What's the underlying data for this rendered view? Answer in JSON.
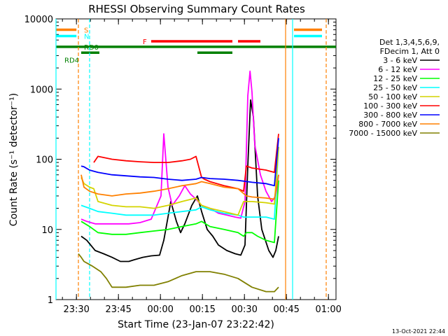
{
  "chart_data": {
    "type": "line",
    "title": "RHESSI Observing Summary Count Rates",
    "xlabel": "Start Time (23-Jan-07 23:22:42)",
    "ylabel": "Count Rate (s⁻¹ detector⁻¹)",
    "x_unit": "minutes after 23:22:42 (23-Jan-07)",
    "xlim": [
      0,
      100
    ],
    "ylim": [
      1,
      10000
    ],
    "yscale": "log",
    "x_ticks": [
      {
        "value": 7.3,
        "label": "23:30"
      },
      {
        "value": 22.3,
        "label": "23:45"
      },
      {
        "value": 37.3,
        "label": "00:00"
      },
      {
        "value": 52.3,
        "label": "00:15"
      },
      {
        "value": 67.3,
        "label": "00:30"
      },
      {
        "value": 82.3,
        "label": "00:45"
      },
      {
        "value": 97.3,
        "label": "01:00"
      }
    ],
    "y_ticks": [
      {
        "value": 1,
        "label": "1"
      },
      {
        "value": 10,
        "label": "10"
      },
      {
        "value": 100,
        "label": "100"
      },
      {
        "value": 1000,
        "label": "1000"
      },
      {
        "value": 10000,
        "label": "10000"
      }
    ],
    "legend_position": "right",
    "legend_header": [
      "Det 1,3,4,5,6,9,",
      "FDecim 1, Att 0"
    ],
    "series": [
      {
        "name": "3 - 6 keV",
        "color": "#000000",
        "x": [
          9,
          11,
          14,
          17,
          20,
          23,
          26,
          28,
          31,
          34,
          37,
          38.5,
          40,
          41,
          43,
          44.5,
          46,
          48.5,
          50.5,
          52,
          54,
          56,
          58,
          61,
          64,
          66,
          67.5,
          68.5,
          69.5,
          70.5,
          72,
          73.5,
          76,
          77.5,
          78.5,
          79.5
        ],
        "y": [
          8,
          7,
          5,
          4.5,
          4,
          3.5,
          3.5,
          3.7,
          4,
          4.2,
          4.3,
          7,
          15,
          25,
          13,
          9,
          12,
          22,
          30,
          18,
          10,
          8,
          6,
          5,
          4.5,
          4.3,
          6,
          80,
          700,
          400,
          30,
          10,
          5,
          4,
          5,
          8
        ]
      },
      {
        "name": "6 - 12 keV",
        "color": "#ff00ff",
        "x": [
          9,
          11,
          14,
          17,
          20,
          23,
          26,
          30,
          34,
          37.5,
          38.5,
          40,
          41.5,
          44,
          46,
          48,
          50,
          52,
          55,
          58,
          61,
          64,
          66,
          67.5,
          68.5,
          69.3,
          70,
          71,
          73,
          75,
          77,
          78.5,
          79.5
        ],
        "y": [
          14,
          13,
          12,
          12,
          12,
          12,
          12,
          12.5,
          14,
          30,
          230,
          40,
          22,
          30,
          42,
          32,
          27,
          22,
          20,
          17,
          16,
          15,
          14.5,
          25,
          800,
          1800,
          900,
          160,
          60,
          35,
          25,
          30,
          60
        ]
      },
      {
        "name": "12 - 25 keV",
        "color": "#00ff00",
        "x": [
          9,
          12,
          15,
          20,
          25,
          30,
          35,
          40,
          45,
          50,
          52,
          55,
          60,
          65,
          67,
          68,
          70,
          72,
          75,
          78,
          79.5
        ],
        "y": [
          13,
          11,
          9,
          8.5,
          8.5,
          9,
          9.5,
          10,
          11,
          12,
          13,
          11,
          10,
          9,
          8,
          9,
          9,
          8,
          7,
          6.5,
          50
        ]
      },
      {
        "name": "25 - 50 keV",
        "color": "#00ffff",
        "x": [
          9,
          12,
          15,
          20,
          25,
          30,
          35,
          40,
          45,
          50,
          52,
          55,
          60,
          65,
          67,
          70,
          75,
          78,
          79.5
        ],
        "y": [
          22,
          20,
          18,
          17,
          16,
          16,
          16,
          17,
          18,
          19,
          21,
          19,
          17,
          16,
          15,
          15,
          15,
          14,
          150
        ]
      },
      {
        "name": "50 - 100 keV",
        "color": "#d4d400",
        "x": [
          9,
          10,
          12,
          13.5,
          15,
          20,
          25,
          30,
          35,
          40,
          45,
          50,
          52,
          55,
          60,
          65,
          67,
          70,
          75,
          78,
          79.5
        ],
        "y": [
          55,
          45,
          40,
          38,
          25,
          22,
          21,
          21,
          20,
          22,
          25,
          28,
          22,
          20,
          18,
          16,
          25,
          25,
          24,
          23,
          150
        ]
      },
      {
        "name": "100 - 300 keV",
        "color": "#ff0000",
        "x": [
          13.5,
          15,
          20,
          25,
          30,
          35,
          40,
          45,
          48,
          50,
          52,
          53,
          55,
          60,
          65,
          67,
          68,
          70,
          75,
          78,
          79.5
        ],
        "y": [
          90,
          110,
          100,
          95,
          92,
          90,
          90,
          95,
          100,
          110,
          55,
          52,
          48,
          42,
          38,
          35,
          80,
          75,
          70,
          65,
          230
        ]
      },
      {
        "name": "300 - 800 keV",
        "color": "#0000ff",
        "x": [
          9,
          10,
          12,
          15,
          20,
          25,
          30,
          35,
          40,
          45,
          50,
          52,
          55,
          60,
          65,
          70,
          75,
          78,
          79.5
        ],
        "y": [
          80,
          78,
          70,
          65,
          60,
          58,
          56,
          55,
          52,
          50,
          52,
          55,
          53,
          52,
          50,
          47,
          45,
          42,
          200
        ]
      },
      {
        "name": "800 - 7000 keV",
        "color": "#ff8000",
        "x": [
          9,
          10,
          12,
          15,
          20,
          25,
          30,
          35,
          40,
          45,
          50,
          52,
          55,
          60,
          65,
          68,
          70,
          75,
          78,
          79.5
        ],
        "y": [
          60,
          40,
          35,
          32,
          30,
          32,
          33,
          35,
          38,
          42,
          45,
          48,
          45,
          40,
          38,
          30,
          29,
          28,
          27,
          60
        ]
      },
      {
        "name": "7000 - 15000 keV",
        "color": "#808000",
        "x": [
          8,
          9,
          10,
          13,
          16,
          18,
          20,
          25,
          30,
          35,
          40,
          45,
          50,
          55,
          60,
          65,
          70,
          75,
          78,
          79.5
        ],
        "y": [
          4.5,
          4,
          3.5,
          3,
          2.5,
          2,
          1.5,
          1.5,
          1.6,
          1.6,
          1.8,
          2.2,
          2.5,
          2.5,
          2.3,
          2,
          1.5,
          1.3,
          1.3,
          1.5
        ]
      }
    ],
    "flag_bars": [
      {
        "name": "S",
        "color": "#ff8000",
        "y": 7000,
        "segments": [
          [
            0,
            7.3
          ],
          [
            85,
            95
          ]
        ]
      },
      {
        "name": "N",
        "color": "#00ffff",
        "y": 5700,
        "segments": [
          [
            0,
            7.3
          ],
          [
            85,
            95
          ]
        ]
      },
      {
        "name": "F",
        "color": "#ff0000",
        "y": 4800,
        "segments": [
          [
            34,
            63
          ],
          [
            65,
            73
          ]
        ]
      },
      {
        "name": "RD0",
        "color": "#008000",
        "y": 4000,
        "segments": [
          [
            0,
            100
          ]
        ]
      },
      {
        "name": "RD4",
        "color": "#008000",
        "y": 3300,
        "segments": [
          [
            9,
            15.5
          ],
          [
            50.5,
            63
          ]
        ]
      }
    ],
    "vertical_markers": [
      {
        "name": "saa",
        "color": "#00ffff",
        "x": [
          0,
          12,
          84.5
        ]
      },
      {
        "name": "night",
        "color": "#ff8000",
        "x": [
          8,
          82,
          96.5
        ]
      }
    ]
  },
  "footer": {
    "timestamp": "13-Oct-2021 22:44"
  }
}
